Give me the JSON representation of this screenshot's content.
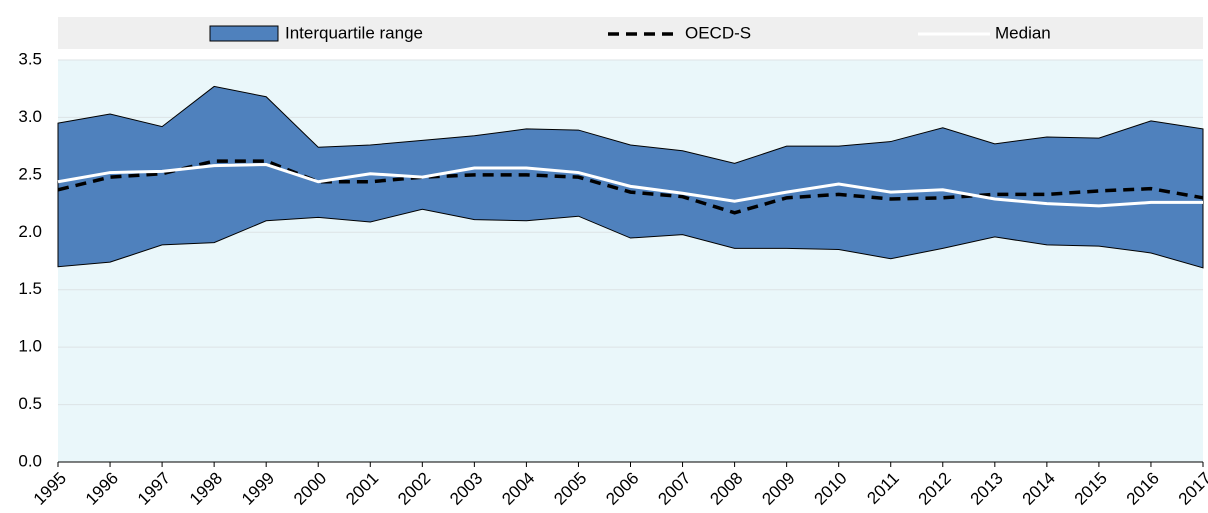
{
  "chart_data": {
    "type": "band-line",
    "x": [
      1995,
      1996,
      1997,
      1998,
      1999,
      2000,
      2001,
      2002,
      2003,
      2004,
      2005,
      2006,
      2007,
      2008,
      2009,
      2010,
      2011,
      2012,
      2013,
      2014,
      2015,
      2016,
      2017
    ],
    "band": {
      "name": "Interquartile range",
      "color": "#4f81bd",
      "lower": [
        1.7,
        1.74,
        1.89,
        1.91,
        2.1,
        2.13,
        2.09,
        2.2,
        2.11,
        2.1,
        2.14,
        1.95,
        1.98,
        1.86,
        1.86,
        1.85,
        1.77,
        1.86,
        1.96,
        1.89,
        1.88,
        1.82,
        1.69
      ],
      "upper": [
        2.95,
        3.03,
        2.92,
        3.27,
        3.18,
        2.74,
        2.76,
        2.8,
        2.84,
        2.9,
        2.89,
        2.76,
        2.71,
        2.6,
        2.75,
        2.75,
        2.79,
        2.91,
        2.77,
        2.83,
        2.82,
        2.97,
        2.9
      ]
    },
    "series": [
      {
        "name": "OECD-S",
        "color": "#000000",
        "dashed": true,
        "values": [
          2.37,
          2.48,
          2.51,
          2.62,
          2.62,
          2.44,
          2.44,
          2.48,
          2.5,
          2.5,
          2.48,
          2.35,
          2.31,
          2.17,
          2.3,
          2.33,
          2.29,
          2.3,
          2.33,
          2.33,
          2.36,
          2.38,
          2.3
        ]
      },
      {
        "name": "Median",
        "color": "#ffffff",
        "dashed": false,
        "values": [
          2.44,
          2.52,
          2.53,
          2.58,
          2.59,
          2.44,
          2.51,
          2.48,
          2.56,
          2.56,
          2.52,
          2.4,
          2.34,
          2.27,
          2.35,
          2.42,
          2.35,
          2.37,
          2.29,
          2.25,
          2.23,
          2.26,
          2.26
        ]
      }
    ],
    "xlim": [
      1995,
      2017
    ],
    "xticks": [
      1995,
      1996,
      1997,
      1998,
      1999,
      2000,
      2001,
      2002,
      2003,
      2004,
      2005,
      2006,
      2007,
      2008,
      2009,
      2010,
      2011,
      2012,
      2013,
      2014,
      2015,
      2016,
      2017
    ],
    "ylim": [
      0,
      3.5
    ],
    "yticks": [
      {
        "value": 0,
        "label": "0.0"
      },
      {
        "value": 0.5,
        "label": "0.5"
      },
      {
        "value": 1,
        "label": "1.0"
      },
      {
        "value": 1.5,
        "label": "1.5"
      },
      {
        "value": 2,
        "label": "2.0"
      },
      {
        "value": 2.5,
        "label": "2.5"
      },
      {
        "value": 3,
        "label": "3.0"
      },
      {
        "value": 3.5,
        "label": "3.5"
      }
    ],
    "grid": true
  }
}
